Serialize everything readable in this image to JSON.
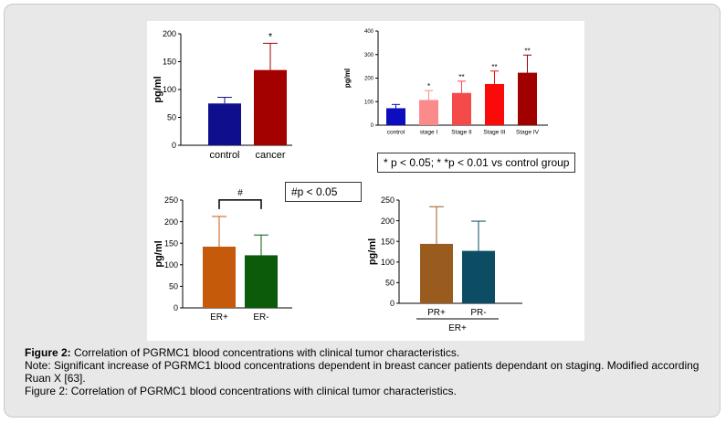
{
  "legend_boxes": {
    "pvalue": "* p < 0.05; * *p < 0.01 vs control group",
    "hash": "#p < 0.05"
  },
  "caption": {
    "figure_label": "Figure 2:",
    "figure_text": " Correlation of PGRMC1 blood concentrations with clinical tumor characteristics.",
    "note": "Note: Significant increase of PGRMC1 blood concentrations dependent in breast cancer patients dependant on staging. Modified according Ruan X [63].",
    "repeat": "Figure 2: Correlation of PGRMC1 blood concentrations with clinical tumor characteristics."
  },
  "chart_data": [
    {
      "id": "control-vs-cancer",
      "type": "bar",
      "ylabel": "pg/ml",
      "ylim": [
        0,
        200
      ],
      "yticks": [
        "0",
        "50",
        "100",
        "150",
        "200"
      ],
      "categories": [
        "control",
        "cancer"
      ],
      "values": [
        75,
        135
      ],
      "errors": [
        11,
        48
      ],
      "colors": [
        "#0f0f8e",
        "#a30000"
      ],
      "annotations": [
        "",
        "*"
      ],
      "group_label": "",
      "bracket": ""
    },
    {
      "id": "stages",
      "type": "bar",
      "ylabel": "pg/ml",
      "ylim": [
        0,
        400
      ],
      "yticks": [
        "0",
        "100",
        "200",
        "300",
        "400"
      ],
      "categories": [
        "control",
        "stage I",
        "Stage II",
        "Stage III",
        "Stage IV"
      ],
      "values": [
        72,
        107,
        137,
        175,
        223
      ],
      "errors": [
        16,
        40,
        50,
        55,
        75
      ],
      "colors": [
        "#0d0dc0",
        "#fb8a8a",
        "#f44a4a",
        "#fb0a0a",
        "#a00000"
      ],
      "annotations": [
        "",
        "*",
        "**",
        "**",
        "**"
      ],
      "group_label": "",
      "bracket": ""
    },
    {
      "id": "er-status",
      "type": "bar",
      "ylabel": "pg/ml",
      "ylim": [
        0,
        250
      ],
      "yticks": [
        "0",
        "50",
        "100",
        "150",
        "200",
        "250"
      ],
      "categories": [
        "ER+",
        "ER-"
      ],
      "values": [
        142,
        122
      ],
      "errors": [
        70,
        47
      ],
      "colors": [
        "#c55b0a",
        "#0b5b0b"
      ],
      "annotations": [
        "",
        ""
      ],
      "group_label": "",
      "bracket": "#"
    },
    {
      "id": "pr-status",
      "type": "bar",
      "ylabel": "pg/ml",
      "ylim": [
        0,
        250
      ],
      "yticks": [
        "0",
        "50",
        "100",
        "150",
        "200",
        "250"
      ],
      "categories": [
        "PR+",
        "PR-"
      ],
      "values": [
        144,
        127
      ],
      "errors": [
        90,
        72
      ],
      "colors": [
        "#9a5b1e",
        "#0d4d63"
      ],
      "annotations": [
        "",
        ""
      ],
      "group_label": "ER+",
      "bracket": ""
    }
  ]
}
